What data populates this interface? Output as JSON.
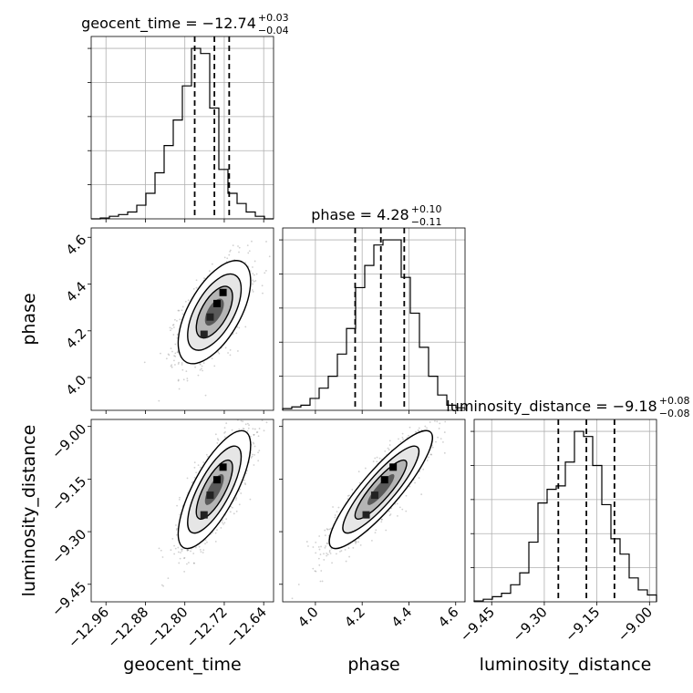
{
  "chart_data": {
    "type": "corner",
    "parameters": [
      {
        "name": "geocent_time",
        "median": -12.74,
        "upper_err": "0.03",
        "lower_err": "0.04",
        "q16": -12.78,
        "q84": -12.71,
        "range": [
          -12.99,
          -12.62
        ],
        "ticks": [
          -12.96,
          -12.88,
          -12.8,
          -12.72,
          -12.64
        ],
        "tick_labels": [
          "−12.96",
          "−12.88",
          "−12.80",
          "−12.72",
          "−12.64"
        ]
      },
      {
        "name": "phase",
        "median": 4.28,
        "upper_err": "0.10",
        "lower_err": "0.11",
        "q16": 4.17,
        "q84": 4.38,
        "range": [
          3.86,
          4.64
        ],
        "ticks": [
          4.0,
          4.2,
          4.4,
          4.6
        ],
        "tick_labels": [
          "4.0",
          "4.2",
          "4.4",
          "4.6"
        ]
      },
      {
        "name": "luminosity_distance",
        "median": -9.18,
        "upper_err": "0.08",
        "lower_err": "0.08",
        "q16": -9.26,
        "q84": -9.1,
        "range": [
          -9.5,
          -8.98
        ],
        "ticks": [
          -9.45,
          -9.3,
          -9.15,
          -9.0
        ],
        "tick_labels": [
          "−9.45",
          "−9.30",
          "−9.15",
          "−9.00"
        ]
      }
    ],
    "titles": [
      {
        "main": "geocent_time = −12.74",
        "sup": "+0.03",
        "sub": "−0.04"
      },
      {
        "main": "phase = 4.28",
        "sup": "+0.10",
        "sub": "−0.11"
      },
      {
        "main": "luminosity_distance = −9.18",
        "sup": "+0.08",
        "sub": "−0.08"
      }
    ],
    "hist": [
      [
        0,
        0.5,
        1.5,
        2.5,
        4,
        8,
        15,
        27,
        43,
        58,
        78,
        100,
        97,
        65,
        29,
        15,
        9,
        4,
        1.5,
        0
      ],
      [
        1,
        2,
        3,
        7,
        13,
        20,
        33,
        48,
        72,
        85,
        97,
        100,
        100,
        78,
        57,
        37,
        20,
        9,
        3,
        1.5
      ],
      [
        0.5,
        1.5,
        3,
        5,
        10,
        17,
        35,
        58,
        66,
        68,
        82,
        100,
        97,
        80,
        57,
        37,
        28,
        14,
        7,
        4
      ]
    ],
    "hist_ylim": [
      0,
      107
    ],
    "pairs": [
      {
        "x": 0,
        "y": 1,
        "rho": 0.6
      },
      {
        "x": 0,
        "y": 2,
        "rho": 0.75
      },
      {
        "x": 1,
        "y": 2,
        "rho": 0.88
      }
    ],
    "grid": true,
    "axis_labels": {
      "x": [
        "geocent_time",
        "phase",
        "luminosity_distance"
      ],
      "y": [
        "phase",
        "luminosity_distance"
      ]
    }
  }
}
